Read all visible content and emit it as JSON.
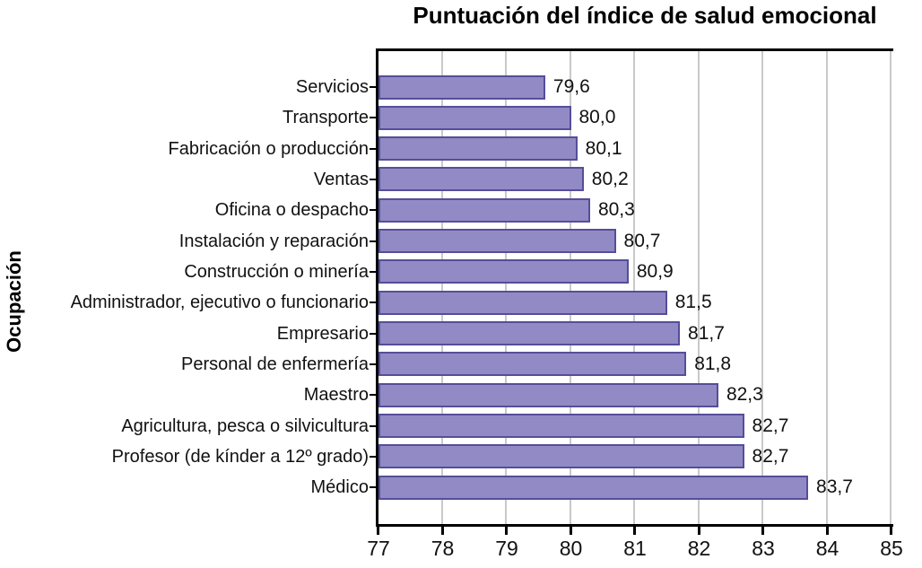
{
  "title": "Puntuación del índice de salud emocional",
  "ylabel": "Ocupación",
  "chart_data": {
    "type": "bar",
    "orientation": "horizontal",
    "title": "Puntuación del índice de salud emocional",
    "xlabel": "",
    "ylabel": "Ocupación",
    "xlim": [
      77,
      85
    ],
    "xticks": [
      "77",
      "78",
      "79",
      "80",
      "81",
      "82",
      "83",
      "84",
      "85"
    ],
    "grid": true,
    "legend": "none",
    "categories": [
      "Servicios",
      "Transporte",
      "Fabricación o producción",
      "Ventas",
      "Oficina o despacho",
      "Instalación y reparación",
      "Construcción o minería",
      "Administrador, ejecutivo o funcionario",
      "Empresario",
      "Personal de enfermería",
      "Maestro",
      "Agricultura, pesca o silvicultura",
      "Profesor (de kínder a 12º grado)",
      "Médico"
    ],
    "values": [
      79.6,
      80.0,
      80.1,
      80.2,
      80.3,
      80.7,
      80.9,
      81.5,
      81.7,
      81.8,
      82.3,
      82.7,
      82.7,
      83.7
    ],
    "value_labels": [
      "79,6",
      "80,0",
      "80,1",
      "80,2",
      "80,3",
      "80,7",
      "80,9",
      "81,5",
      "81,7",
      "81,8",
      "82,3",
      "82,7",
      "82,7",
      "83,7"
    ],
    "colors": {
      "bar_fill": "#918ac4",
      "bar_border": "#554e99",
      "gridline": "#c9c9c9",
      "axis": "#000000"
    }
  }
}
